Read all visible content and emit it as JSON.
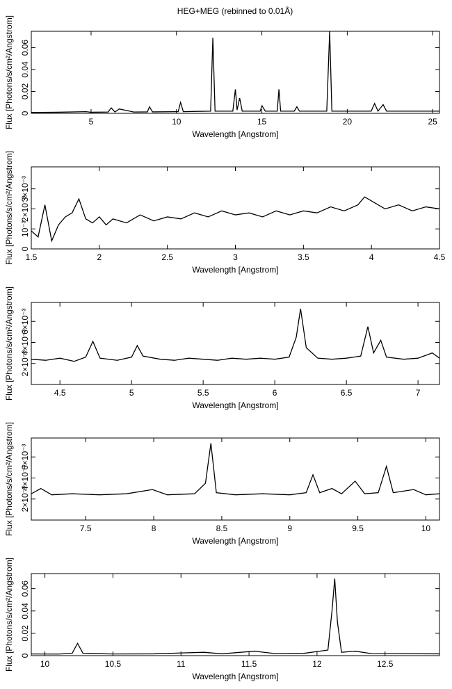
{
  "chart_data": [
    {
      "type": "line",
      "title": "HEG+MEG (rebinned to 0.01Å)",
      "xlabel": "Wavelength [Angstrom]",
      "ylabel": "Flux [Photons/s/cm²/Angstrom]",
      "xlim": [
        1.5,
        25.4
      ],
      "xticks": [
        5,
        10,
        15,
        20,
        25
      ],
      "ylim": [
        0,
        0.075
      ],
      "yticks": [
        0,
        0.02,
        0.04,
        0.06
      ],
      "x": [
        1.5,
        3,
        4.7,
        5,
        6.0,
        6.18,
        6.4,
        6.65,
        7.5,
        8.3,
        8.42,
        8.6,
        10.1,
        10.24,
        10.4,
        11.2,
        12.0,
        12.13,
        12.26,
        13.3,
        13.45,
        13.55,
        13.7,
        13.85,
        14.9,
        15.01,
        15.2,
        15.9,
        16.0,
        16.1,
        16.9,
        17.05,
        17.2,
        18.8,
        18.97,
        19.1,
        21.4,
        21.6,
        21.8,
        22.1,
        22.3,
        24,
        25.4
      ],
      "series": [
        {
          "color": "#000000",
          "values": [
            0.0008,
            0.001,
            0.0015,
            0.001,
            0.0012,
            0.005,
            0.0012,
            0.004,
            0.0012,
            0.0013,
            0.006,
            0.0013,
            0.0015,
            0.01,
            0.0015,
            0.0018,
            0.002,
            0.069,
            0.002,
            0.002,
            0.022,
            0.003,
            0.014,
            0.002,
            0.002,
            0.007,
            0.002,
            0.002,
            0.022,
            0.002,
            0.002,
            0.006,
            0.002,
            0.002,
            0.075,
            0.002,
            0.002,
            0.009,
            0.002,
            0.008,
            0.002,
            0.002,
            0.002
          ]
        }
      ]
    },
    {
      "type": "line",
      "xlabel": "Wavelength [Angstrom]",
      "ylabel": "Flux [Photons/s/cm²/Angstrom]",
      "xlim": [
        1.5,
        4.5
      ],
      "xticks": [
        1.5,
        2,
        2.5,
        3,
        3.5,
        4,
        4.5
      ],
      "ylim": [
        0,
        0.0041
      ],
      "yticks": [
        0,
        {
          "value": 0.001,
          "label": "10⁻³"
        },
        {
          "value": 0.002,
          "label": "2×10⁻³"
        },
        {
          "value": 0.003,
          "label": "3×10⁻³"
        }
      ],
      "x": [
        1.5,
        1.55,
        1.6,
        1.65,
        1.7,
        1.75,
        1.8,
        1.85,
        1.9,
        1.95,
        2.0,
        2.05,
        2.1,
        2.2,
        2.3,
        2.4,
        2.5,
        2.6,
        2.7,
        2.8,
        2.9,
        3.0,
        3.1,
        3.2,
        3.3,
        3.4,
        3.5,
        3.6,
        3.7,
        3.8,
        3.9,
        3.95,
        4.0,
        4.1,
        4.2,
        4.3,
        4.4,
        4.5
      ],
      "series": [
        {
          "color": "#000000",
          "values": [
            0.0009,
            0.0006,
            0.0022,
            0.0004,
            0.0012,
            0.0016,
            0.0018,
            0.0025,
            0.0015,
            0.0013,
            0.0016,
            0.0012,
            0.0015,
            0.0013,
            0.0017,
            0.0014,
            0.0016,
            0.0015,
            0.0018,
            0.0016,
            0.0019,
            0.0017,
            0.0018,
            0.0016,
            0.0019,
            0.0017,
            0.0019,
            0.0018,
            0.0021,
            0.0019,
            0.0022,
            0.0026,
            0.0024,
            0.002,
            0.0022,
            0.0019,
            0.0021,
            0.002
          ]
        }
      ]
    },
    {
      "type": "line",
      "xlabel": "Wavelength [Angstrom]",
      "ylabel": "Flux [Photons/s/cm²/Angstrom]",
      "xlim": [
        4.3,
        7.15
      ],
      "xticks": [
        4.5,
        5,
        5.5,
        6,
        6.5,
        7
      ],
      "ylim": [
        0,
        0.0078
      ],
      "yticks": [
        {
          "value": 0.002,
          "label": "2×10⁻³"
        },
        {
          "value": 0.004,
          "label": "4×10⁻³"
        },
        {
          "value": 0.006,
          "label": "6×10⁻³"
        }
      ],
      "x": [
        4.3,
        4.4,
        4.5,
        4.6,
        4.68,
        4.73,
        4.78,
        4.9,
        5.0,
        5.04,
        5.08,
        5.2,
        5.3,
        5.4,
        5.5,
        5.6,
        5.7,
        5.8,
        5.9,
        6.0,
        6.1,
        6.15,
        6.18,
        6.22,
        6.3,
        6.4,
        6.5,
        6.6,
        6.65,
        6.69,
        6.74,
        6.78,
        6.9,
        7.0,
        7.1,
        7.15
      ],
      "series": [
        {
          "color": "#000000",
          "values": [
            0.0024,
            0.0023,
            0.0025,
            0.0022,
            0.0026,
            0.0041,
            0.0025,
            0.0023,
            0.0026,
            0.0037,
            0.0027,
            0.0024,
            0.0023,
            0.0025,
            0.0024,
            0.0023,
            0.0025,
            0.0024,
            0.0025,
            0.0024,
            0.0026,
            0.0045,
            0.0072,
            0.0035,
            0.0025,
            0.0024,
            0.0025,
            0.0027,
            0.0055,
            0.003,
            0.0042,
            0.0026,
            0.0024,
            0.0025,
            0.003,
            0.0025
          ]
        }
      ]
    },
    {
      "type": "line",
      "xlabel": "Wavelength [Angstrom]",
      "ylabel": "Flux [Photons/s/cm²/Angstrom]",
      "xlim": [
        7.1,
        10.1
      ],
      "xticks": [
        7.5,
        8,
        8.5,
        9,
        9.5,
        10
      ],
      "ylim": [
        0,
        0.0078
      ],
      "yticks": [
        {
          "value": 0.002,
          "label": "2×10⁻³"
        },
        {
          "value": 0.004,
          "label": "4×10⁻³"
        },
        {
          "value": 0.006,
          "label": "6×10⁻³"
        }
      ],
      "x": [
        7.1,
        7.17,
        7.25,
        7.4,
        7.6,
        7.8,
        7.99,
        8.1,
        8.3,
        8.38,
        8.42,
        8.46,
        8.6,
        8.8,
        9.0,
        9.12,
        9.17,
        9.22,
        9.31,
        9.38,
        9.48,
        9.55,
        9.65,
        9.71,
        9.76,
        9.91,
        10.0,
        10.1
      ],
      "series": [
        {
          "color": "#000000",
          "values": [
            0.0025,
            0.003,
            0.0024,
            0.0025,
            0.0024,
            0.0025,
            0.0029,
            0.0024,
            0.0025,
            0.0035,
            0.0073,
            0.0026,
            0.0024,
            0.0025,
            0.0024,
            0.0026,
            0.0043,
            0.0026,
            0.003,
            0.0025,
            0.0037,
            0.0025,
            0.0026,
            0.0051,
            0.0026,
            0.0029,
            0.0024,
            0.0025
          ]
        }
      ]
    },
    {
      "type": "line",
      "xlabel": "Wavelength [Angstrom]",
      "ylabel": "Flux [Photons/s/cm²/Angstrom]",
      "xlim": [
        9.9,
        12.9
      ],
      "xticks": [
        10,
        10.5,
        11,
        11.5,
        12,
        12.5
      ],
      "ylim": [
        0,
        0.0735
      ],
      "yticks": [
        0,
        0.02,
        0.04,
        0.06
      ],
      "x": [
        9.9,
        10.1,
        10.2,
        10.24,
        10.28,
        10.5,
        10.8,
        11.17,
        11.3,
        11.54,
        11.7,
        11.9,
        12.08,
        12.11,
        12.13,
        12.15,
        12.18,
        12.28,
        12.4,
        12.6,
        12.9
      ],
      "series": [
        {
          "color": "#000000",
          "values": [
            0.0015,
            0.0014,
            0.002,
            0.011,
            0.002,
            0.0015,
            0.0016,
            0.003,
            0.0016,
            0.004,
            0.0017,
            0.002,
            0.005,
            0.04,
            0.069,
            0.03,
            0.003,
            0.004,
            0.0018,
            0.0017,
            0.0016
          ]
        }
      ]
    }
  ]
}
